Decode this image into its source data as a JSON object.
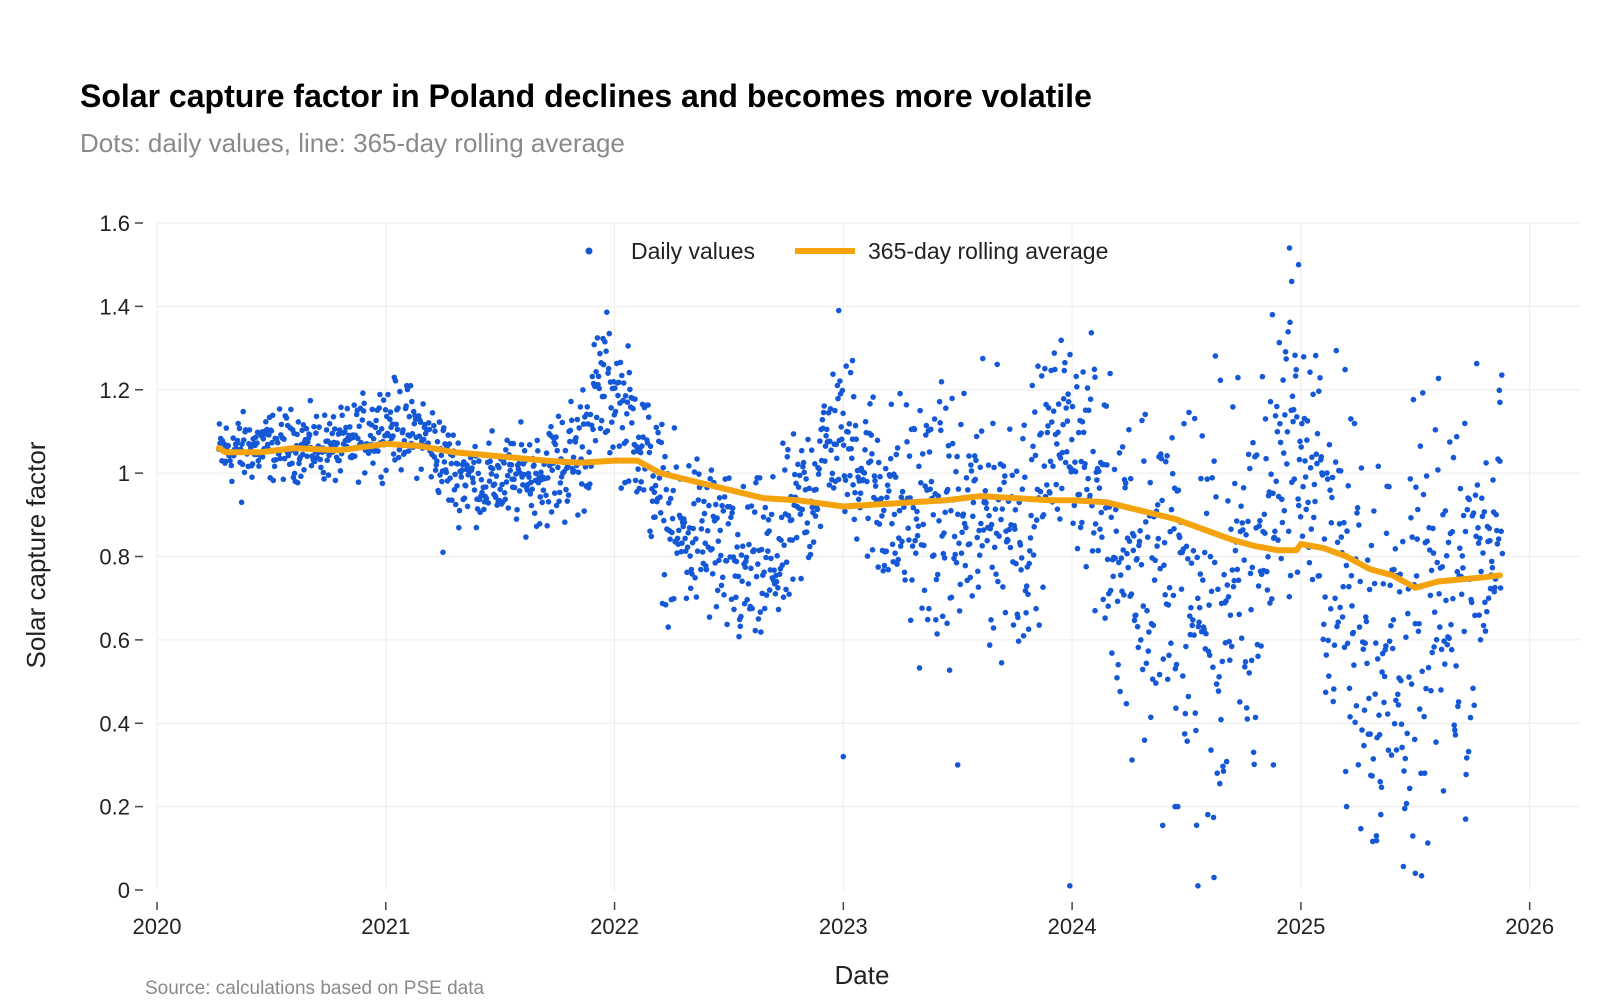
{
  "title": "Solar capture factor in Poland declines and becomes more volatile",
  "subtitle": "Dots: daily values, line: 365-day rolling average",
  "source": "Source: calculations based on PSE data",
  "colors": {
    "dots": "#1558d6",
    "line": "#f5a30c",
    "grid": "#ececec",
    "axis": "#444444"
  },
  "chart_data": {
    "type": "scatter",
    "title": "Solar capture factor in Poland declines and becomes more volatile",
    "xlabel": "Date",
    "ylabel": "Solar capture factor",
    "xlim": [
      2020.0,
      2026.22
    ],
    "ylim": [
      0,
      1.6
    ],
    "x_ticks": [
      2020,
      2021,
      2022,
      2023,
      2024,
      2025,
      2026
    ],
    "x_tick_labels": [
      "2020",
      "2021",
      "2022",
      "2023",
      "2024",
      "2025",
      "2026"
    ],
    "y_ticks": [
      0,
      0.2,
      0.4,
      0.6,
      0.8,
      1,
      1.2,
      1.4,
      1.6
    ],
    "y_tick_labels": [
      "0",
      "0.2",
      "0.4",
      "0.6",
      "0.8",
      "1",
      "1.2",
      "1.4",
      "1.6"
    ],
    "legend": {
      "placement": "top-center",
      "entries": [
        "Daily values",
        "365-day rolling average"
      ]
    },
    "grid": true,
    "series": [
      {
        "name": "Daily values",
        "type": "scatter",
        "profile_x": [
          2020.27,
          2020.4,
          2020.6,
          2020.8,
          2021.0,
          2021.15,
          2021.3,
          2021.5,
          2021.7,
          2021.85,
          2021.95,
          2022.1,
          2022.25,
          2022.4,
          2022.55,
          2022.7,
          2022.85,
          2022.95,
          2023.05,
          2023.2,
          2023.35,
          2023.5,
          2023.65,
          2023.8,
          2023.95,
          2024.05,
          2024.2,
          2024.35,
          2024.5,
          2024.65,
          2024.8,
          2024.92,
          2025.0,
          2025.15,
          2025.3,
          2025.45,
          2025.55,
          2025.7,
          2025.88
        ],
        "profile_center": [
          1.05,
          1.06,
          1.07,
          1.06,
          1.12,
          1.1,
          1.0,
          0.98,
          1.0,
          1.05,
          1.22,
          1.1,
          0.85,
          0.85,
          0.75,
          0.78,
          0.95,
          1.1,
          1.05,
          0.92,
          0.9,
          0.88,
          0.9,
          0.88,
          1.12,
          1.05,
          0.85,
          0.75,
          0.7,
          0.65,
          0.75,
          1.1,
          1.05,
          0.8,
          0.6,
          0.55,
          0.6,
          0.75,
          0.9
        ],
        "profile_spread": [
          0.04,
          0.04,
          0.04,
          0.04,
          0.05,
          0.05,
          0.05,
          0.05,
          0.06,
          0.08,
          0.08,
          0.08,
          0.1,
          0.1,
          0.1,
          0.1,
          0.1,
          0.08,
          0.1,
          0.12,
          0.15,
          0.15,
          0.15,
          0.15,
          0.1,
          0.12,
          0.18,
          0.22,
          0.25,
          0.25,
          0.25,
          0.15,
          0.15,
          0.22,
          0.25,
          0.25,
          0.25,
          0.22,
          0.15
        ],
        "outliers": [
          [
            2020.37,
            0.93
          ],
          [
            2021.25,
            0.81
          ],
          [
            2022.98,
            1.39
          ],
          [
            2023.0,
            0.32
          ],
          [
            2023.04,
            1.27
          ],
          [
            2023.5,
            0.3
          ],
          [
            2023.99,
            0.01
          ],
          [
            2024.1,
            0.67
          ],
          [
            2024.45,
            0.2
          ],
          [
            2024.55,
            0.01
          ],
          [
            2024.62,
            0.03
          ],
          [
            2024.88,
            0.3
          ],
          [
            2024.95,
            1.54
          ],
          [
            2024.96,
            1.46
          ],
          [
            2024.99,
            1.5
          ],
          [
            2025.2,
            0.2
          ],
          [
            2025.33,
            0.13
          ],
          [
            2025.5,
            0.04
          ],
          [
            2025.72,
            0.17
          ],
          [
            2025.87,
            1.17
          ]
        ]
      },
      {
        "name": "365-day rolling average",
        "type": "line",
        "x": [
          2020.27,
          2020.3,
          2020.45,
          2020.6,
          2020.8,
          2021.0,
          2021.15,
          2021.3,
          2021.5,
          2021.7,
          2021.85,
          2022.0,
          2022.1,
          2022.2,
          2022.35,
          2022.5,
          2022.65,
          2022.8,
          2023.0,
          2023.15,
          2023.3,
          2023.45,
          2023.6,
          2023.75,
          2023.9,
          2024.0,
          2024.15,
          2024.3,
          2024.45,
          2024.6,
          2024.7,
          2024.8,
          2024.9,
          2024.98,
          2025.0,
          2025.1,
          2025.2,
          2025.3,
          2025.4,
          2025.5,
          2025.6,
          2025.7,
          2025.8,
          2025.87
        ],
        "y": [
          1.06,
          1.05,
          1.05,
          1.06,
          1.055,
          1.07,
          1.065,
          1.05,
          1.04,
          1.03,
          1.025,
          1.03,
          1.03,
          1.0,
          0.98,
          0.96,
          0.94,
          0.935,
          0.92,
          0.925,
          0.93,
          0.935,
          0.945,
          0.94,
          0.935,
          0.935,
          0.93,
          0.91,
          0.89,
          0.86,
          0.84,
          0.825,
          0.815,
          0.815,
          0.83,
          0.82,
          0.8,
          0.77,
          0.755,
          0.725,
          0.74,
          0.745,
          0.75,
          0.755
        ]
      }
    ]
  }
}
